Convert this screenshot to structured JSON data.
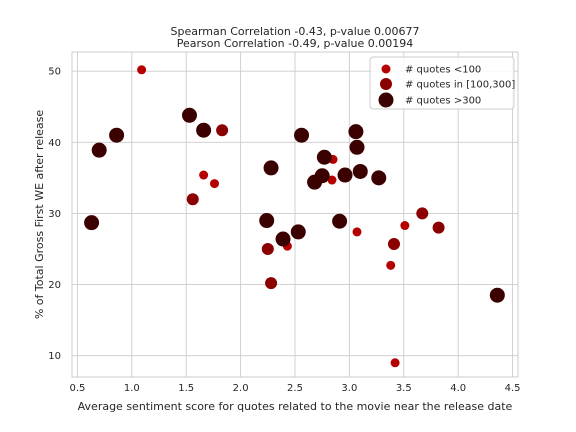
{
  "chart_data": {
    "type": "scatter",
    "title_lines": [
      "Spearman Correlation -0.43, p-value 0.00677",
      "Pearson Correlation -0.49, p-value 0.00194"
    ],
    "xlabel": "Average sentiment score for quotes related to the movie near the release date",
    "ylabel": "% of Total Gross First WE after release",
    "xlim": [
      0.45,
      4.55
    ],
    "ylim": [
      7.0,
      52.7
    ],
    "xticks": [
      0.5,
      1.0,
      1.5,
      2.0,
      2.5,
      3.0,
      3.5,
      4.0,
      4.5
    ],
    "xtick_labels": [
      "0.5",
      "1.0",
      "1.5",
      "2.0",
      "2.5",
      "3.0",
      "3.5",
      "4.0",
      "4.5"
    ],
    "yticks": [
      10,
      20,
      30,
      40,
      50
    ],
    "ytick_labels": [
      "10",
      "20",
      "30",
      "40",
      "50"
    ],
    "grid": true,
    "legend_position": "top-right",
    "series": [
      {
        "name": "# quotes <100",
        "color": "#b50000",
        "points": [
          [
            1.09,
            50.2
          ],
          [
            1.66,
            35.4
          ],
          [
            1.76,
            34.2
          ],
          [
            2.43,
            25.4
          ],
          [
            2.84,
            34.7
          ],
          [
            2.85,
            37.6
          ],
          [
            3.07,
            27.4
          ],
          [
            3.38,
            22.7
          ],
          [
            3.42,
            9.0
          ],
          [
            3.51,
            28.3
          ]
        ]
      },
      {
        "name": "# quotes in [100,300]",
        "color": "#8b0000",
        "points": [
          [
            1.56,
            32.0
          ],
          [
            1.83,
            41.7
          ],
          [
            2.25,
            25.0
          ],
          [
            2.28,
            20.2
          ],
          [
            3.41,
            25.7
          ],
          [
            3.67,
            30.0
          ],
          [
            3.82,
            28.0
          ]
        ]
      },
      {
        "name": "# quotes >300",
        "color": "#3b0000",
        "points": [
          [
            0.63,
            28.7
          ],
          [
            0.7,
            38.9
          ],
          [
            0.86,
            41.0
          ],
          [
            1.53,
            43.8
          ],
          [
            1.66,
            41.7
          ],
          [
            2.24,
            29.0
          ],
          [
            2.28,
            36.4
          ],
          [
            2.39,
            26.4
          ],
          [
            2.53,
            27.4
          ],
          [
            2.56,
            41.0
          ],
          [
            2.68,
            34.4
          ],
          [
            2.75,
            35.3
          ],
          [
            2.77,
            37.9
          ],
          [
            2.91,
            28.9
          ],
          [
            2.96,
            35.4
          ],
          [
            3.06,
            41.5
          ],
          [
            3.07,
            39.3
          ],
          [
            3.1,
            35.9
          ],
          [
            3.27,
            35.0
          ],
          [
            4.36,
            18.5
          ]
        ]
      }
    ]
  }
}
